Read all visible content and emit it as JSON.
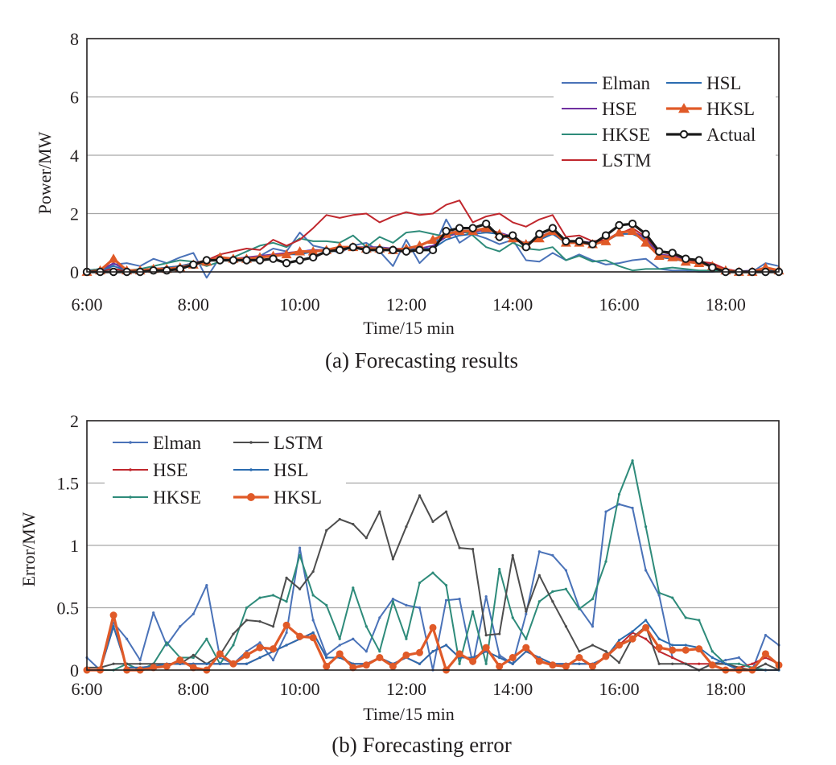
{
  "chart_data": [
    {
      "type": "line",
      "caption": "(a) Forecasting results",
      "xlabel": "Time/15 min",
      "ylabel": "Power/MW",
      "xlim": [
        "6:00",
        "19:00"
      ],
      "ylim": [
        0,
        8
      ],
      "yticks": [
        "0",
        "2",
        "4",
        "6",
        "8"
      ],
      "xticks": [
        "6:00",
        "8:00",
        "10:00",
        "12:00",
        "14:00",
        "16:00",
        "18:00"
      ],
      "grid": "horizontal",
      "legend_position": "upper-right",
      "x": [
        "6:00",
        "6:15",
        "6:30",
        "6:45",
        "7:00",
        "7:15",
        "7:30",
        "7:45",
        "8:00",
        "8:15",
        "8:30",
        "8:45",
        "9:00",
        "9:15",
        "9:30",
        "9:45",
        "10:00",
        "10:15",
        "10:30",
        "10:45",
        "11:00",
        "11:15",
        "11:30",
        "11:45",
        "12:00",
        "12:15",
        "12:30",
        "12:45",
        "13:00",
        "13:15",
        "13:30",
        "13:45",
        "14:00",
        "14:15",
        "14:30",
        "14:45",
        "15:00",
        "15:15",
        "15:30",
        "15:45",
        "16:00",
        "16:15",
        "16:30",
        "16:45",
        "17:00",
        "17:15",
        "17:30",
        "17:45",
        "18:00",
        "18:15",
        "18:30",
        "18:45",
        "19:00"
      ],
      "series": [
        {
          "name": "Elman",
          "color": "#4a72b8",
          "marker": "none",
          "values": [
            0.05,
            0.1,
            0.25,
            0.3,
            0.2,
            0.45,
            0.3,
            0.5,
            0.65,
            -0.2,
            0.5,
            0.45,
            0.4,
            0.55,
            0.8,
            0.7,
            1.35,
            0.9,
            0.8,
            0.65,
            0.9,
            1.0,
            0.7,
            0.2,
            1.1,
            0.3,
            0.75,
            1.8,
            1.0,
            1.3,
            1.15,
            0.95,
            1.1,
            0.4,
            0.35,
            0.65,
            0.4,
            0.6,
            0.4,
            0.25,
            0.3,
            0.4,
            0.45,
            0.1,
            0.05,
            0.05,
            0.0,
            0.0,
            0.05,
            0.05,
            0.0,
            0.3,
            0.2
          ]
        },
        {
          "name": "HSE",
          "color": "#7030a0",
          "marker": "none",
          "values": [
            0.02,
            0.05,
            0.3,
            0.05,
            0.05,
            0.1,
            0.1,
            0.15,
            0.25,
            0.35,
            0.45,
            0.45,
            0.5,
            0.55,
            0.6,
            0.65,
            0.7,
            0.75,
            0.75,
            0.8,
            0.85,
            0.85,
            0.85,
            0.8,
            0.8,
            0.8,
            0.9,
            1.2,
            1.35,
            1.35,
            1.45,
            1.35,
            1.2,
            0.95,
            1.2,
            1.4,
            1.05,
            1.05,
            1.0,
            1.1,
            1.35,
            1.4,
            1.15,
            0.6,
            0.55,
            0.4,
            0.35,
            0.25,
            0.1,
            0.02,
            0.05,
            0.1,
            0.05
          ]
        },
        {
          "name": "HKSE",
          "color": "#2e8b7a",
          "marker": "none",
          "values": [
            0.05,
            0.1,
            0.1,
            0.05,
            0.1,
            0.2,
            0.3,
            0.4,
            0.35,
            0.2,
            0.35,
            0.5,
            0.7,
            0.9,
            1.0,
            0.85,
            1.15,
            1.05,
            1.05,
            1.0,
            1.25,
            0.85,
            1.2,
            1.0,
            1.35,
            1.4,
            1.3,
            1.2,
            1.45,
            1.25,
            0.85,
            0.7,
            1.0,
            0.8,
            0.75,
            0.85,
            0.4,
            0.55,
            0.35,
            0.4,
            0.2,
            0.05,
            0.1,
            0.1,
            0.15,
            0.1,
            0.05,
            0.05,
            0.0,
            0.0,
            0.0,
            0.0,
            0.0
          ]
        },
        {
          "name": "LSTM",
          "color": "#c0272d",
          "marker": "none",
          "values": [
            0.02,
            0.05,
            0.1,
            0.05,
            0.05,
            0.1,
            0.15,
            0.2,
            0.3,
            0.4,
            0.6,
            0.7,
            0.8,
            0.75,
            1.1,
            0.9,
            1.1,
            1.5,
            1.95,
            1.85,
            1.95,
            2.0,
            1.7,
            1.9,
            2.05,
            1.95,
            2.0,
            2.3,
            2.45,
            1.7,
            1.9,
            2.0,
            1.7,
            1.55,
            1.8,
            1.95,
            1.2,
            1.25,
            1.05,
            1.1,
            1.3,
            1.5,
            1.2,
            0.7,
            0.6,
            0.45,
            0.35,
            0.3,
            0.1,
            0.02,
            0.0,
            0.05,
            0.0
          ]
        },
        {
          "name": "HSL",
          "color": "#2b6cb0",
          "marker": "none",
          "values": [
            0.05,
            0.05,
            0.2,
            0.05,
            0.05,
            0.1,
            0.15,
            0.2,
            0.3,
            0.35,
            0.45,
            0.4,
            0.45,
            0.5,
            0.55,
            0.6,
            0.6,
            0.7,
            0.75,
            0.8,
            0.8,
            0.8,
            0.85,
            0.75,
            0.75,
            0.8,
            0.8,
            1.1,
            1.25,
            1.3,
            1.35,
            1.3,
            1.1,
            1.0,
            1.1,
            1.3,
            1.0,
            1.0,
            0.95,
            1.05,
            1.3,
            1.3,
            1.1,
            0.5,
            0.45,
            0.35,
            0.3,
            0.2,
            0.05,
            0.02,
            0.02,
            0.05,
            0.05
          ]
        },
        {
          "name": "HKSL",
          "color": "#e05a28",
          "marker": "triangle",
          "values": [
            0.0,
            0.05,
            0.45,
            0.05,
            0.05,
            0.1,
            0.1,
            0.15,
            0.25,
            0.35,
            0.5,
            0.45,
            0.45,
            0.5,
            0.55,
            0.6,
            0.7,
            0.7,
            0.75,
            0.85,
            0.85,
            0.8,
            0.8,
            0.75,
            0.8,
            0.9,
            1.1,
            1.3,
            1.4,
            1.4,
            1.5,
            1.3,
            1.15,
            0.95,
            1.15,
            1.4,
            1.0,
            1.0,
            0.95,
            1.05,
            1.35,
            1.4,
            1.0,
            0.55,
            0.5,
            0.35,
            0.3,
            0.2,
            0.05,
            0.0,
            0.0,
            0.15,
            0.05
          ]
        },
        {
          "name": "Actual",
          "color": "#1a1a1a",
          "marker": "circle",
          "values": [
            0.0,
            0.0,
            0.0,
            0.0,
            0.0,
            0.05,
            0.05,
            0.1,
            0.25,
            0.4,
            0.4,
            0.4,
            0.4,
            0.4,
            0.45,
            0.3,
            0.4,
            0.5,
            0.7,
            0.75,
            0.85,
            0.75,
            0.75,
            0.75,
            0.7,
            0.75,
            0.75,
            1.4,
            1.5,
            1.5,
            1.65,
            1.2,
            1.25,
            0.85,
            1.3,
            1.5,
            1.05,
            1.05,
            0.95,
            1.25,
            1.6,
            1.65,
            1.3,
            0.7,
            0.65,
            0.45,
            0.4,
            0.15,
            0.0,
            0.0,
            0.0,
            0.0,
            0.0
          ]
        }
      ]
    },
    {
      "type": "line",
      "caption": "(b) Forecasting error",
      "xlabel": "Time/15 min",
      "ylabel": "Error/MW",
      "xlim": [
        "6:00",
        "19:00"
      ],
      "ylim": [
        0,
        2
      ],
      "yticks": [
        "0",
        "0.5",
        "1",
        "1.5",
        "2"
      ],
      "xticks": [
        "6:00",
        "8:00",
        "10:00",
        "12:00",
        "14:00",
        "16:00",
        "18:00"
      ],
      "grid": "horizontal",
      "legend_position": "upper-left",
      "x": [
        "6:00",
        "6:15",
        "6:30",
        "6:45",
        "7:00",
        "7:15",
        "7:30",
        "7:45",
        "8:00",
        "8:15",
        "8:30",
        "8:45",
        "9:00",
        "9:15",
        "9:30",
        "9:45",
        "10:00",
        "10:15",
        "10:30",
        "10:45",
        "11:00",
        "11:15",
        "11:30",
        "11:45",
        "12:00",
        "12:15",
        "12:30",
        "12:45",
        "13:00",
        "13:15",
        "13:30",
        "13:45",
        "14:00",
        "14:15",
        "14:30",
        "14:45",
        "15:00",
        "15:15",
        "15:30",
        "15:45",
        "16:00",
        "16:15",
        "16:30",
        "16:45",
        "17:00",
        "17:15",
        "17:30",
        "17:45",
        "18:00",
        "18:15",
        "18:30",
        "18:45",
        "19:00"
      ],
      "series": [
        {
          "name": "Elman",
          "color": "#4a72b8",
          "marker": "dot",
          "values": [
            0.1,
            0.0,
            0.38,
            0.25,
            0.08,
            0.46,
            0.2,
            0.35,
            0.45,
            0.68,
            0.1,
            0.05,
            0.15,
            0.22,
            0.08,
            0.3,
            0.98,
            0.4,
            0.12,
            0.2,
            0.25,
            0.15,
            0.42,
            0.57,
            0.52,
            0.5,
            0.0,
            0.56,
            0.57,
            0.05,
            0.59,
            0.12,
            0.05,
            0.45,
            0.95,
            0.92,
            0.8,
            0.5,
            0.35,
            1.27,
            1.33,
            1.3,
            0.8,
            0.6,
            0.1,
            0.05,
            0.0,
            0.05,
            0.08,
            0.1,
            0.0,
            0.28,
            0.2
          ]
        },
        {
          "name": "HSE",
          "color": "#c0272d",
          "marker": "dot",
          "values": [
            0.0,
            0.0,
            0.35,
            0.02,
            0.02,
            0.03,
            0.05,
            0.05,
            0.05,
            0.05,
            0.05,
            0.05,
            0.05,
            0.1,
            0.15,
            0.2,
            0.25,
            0.3,
            0.1,
            0.1,
            0.05,
            0.05,
            0.1,
            0.05,
            0.1,
            0.05,
            0.15,
            0.2,
            0.1,
            0.1,
            0.15,
            0.1,
            0.05,
            0.15,
            0.1,
            0.05,
            0.05,
            0.05,
            0.05,
            0.1,
            0.2,
            0.3,
            0.25,
            0.15,
            0.1,
            0.05,
            0.05,
            0.05,
            0.05,
            0.02,
            0.05,
            0.1,
            0.05
          ]
        },
        {
          "name": "HKSE",
          "color": "#2e8b7a",
          "marker": "dot",
          "values": [
            0.0,
            0.0,
            0.0,
            0.05,
            0.0,
            0.05,
            0.22,
            0.1,
            0.1,
            0.25,
            0.05,
            0.2,
            0.5,
            0.58,
            0.6,
            0.55,
            0.92,
            0.6,
            0.52,
            0.25,
            0.66,
            0.35,
            0.15,
            0.55,
            0.25,
            0.7,
            0.78,
            0.68,
            0.05,
            0.47,
            0.05,
            0.81,
            0.42,
            0.25,
            0.55,
            0.63,
            0.65,
            0.49,
            0.57,
            0.87,
            1.41,
            1.68,
            1.15,
            0.62,
            0.58,
            0.42,
            0.4,
            0.15,
            0.05,
            0.05,
            0.02,
            0.0,
            0.0
          ]
        },
        {
          "name": "LSTM",
          "color": "#4d4d4d",
          "marker": "dot",
          "values": [
            0.02,
            0.02,
            0.05,
            0.05,
            0.05,
            0.05,
            0.05,
            0.05,
            0.12,
            0.05,
            0.12,
            0.29,
            0.4,
            0.39,
            0.35,
            0.74,
            0.65,
            0.79,
            1.12,
            1.21,
            1.17,
            1.06,
            1.27,
            0.89,
            1.15,
            1.4,
            1.19,
            1.27,
            0.98,
            0.97,
            0.28,
            0.29,
            0.92,
            0.47,
            0.76,
            0.55,
            0.35,
            0.15,
            0.2,
            0.15,
            0.06,
            0.26,
            0.35,
            0.05,
            0.05,
            0.05,
            0.0,
            0.05,
            0.05,
            0.02,
            0.0,
            0.05,
            0.0
          ]
        },
        {
          "name": "HSL",
          "color": "#2b6cb0",
          "marker": "dot",
          "values": [
            0.0,
            0.0,
            0.35,
            0.02,
            0.02,
            0.03,
            0.05,
            0.05,
            0.05,
            0.05,
            0.05,
            0.05,
            0.05,
            0.1,
            0.15,
            0.2,
            0.25,
            0.3,
            0.1,
            0.1,
            0.05,
            0.05,
            0.1,
            0.05,
            0.1,
            0.05,
            0.15,
            0.2,
            0.1,
            0.1,
            0.15,
            0.1,
            0.05,
            0.15,
            0.1,
            0.05,
            0.05,
            0.05,
            0.05,
            0.1,
            0.24,
            0.31,
            0.4,
            0.25,
            0.2,
            0.2,
            0.18,
            0.1,
            0.05,
            0.0,
            0.0,
            0.0,
            0.0
          ]
        },
        {
          "name": "HKSL",
          "color": "#e05a28",
          "marker": "circle",
          "values": [
            0.0,
            0.0,
            0.44,
            0.0,
            0.0,
            0.02,
            0.03,
            0.08,
            0.02,
            0.0,
            0.13,
            0.05,
            0.12,
            0.18,
            0.17,
            0.36,
            0.27,
            0.26,
            0.03,
            0.13,
            0.02,
            0.04,
            0.1,
            0.03,
            0.12,
            0.14,
            0.34,
            0.0,
            0.13,
            0.07,
            0.18,
            0.03,
            0.1,
            0.18,
            0.07,
            0.04,
            0.03,
            0.1,
            0.03,
            0.11,
            0.2,
            0.25,
            0.34,
            0.18,
            0.16,
            0.16,
            0.17,
            0.04,
            0.0,
            0.0,
            0.0,
            0.13,
            0.04
          ]
        }
      ]
    }
  ],
  "legend_a": [
    {
      "name": "Elman"
    },
    {
      "name": "HSL"
    },
    {
      "name": "HSE"
    },
    {
      "name": "HKSL"
    },
    {
      "name": "HKSE"
    },
    {
      "name": "Actual"
    },
    {
      "name": "LSTM"
    }
  ],
  "legend_b": [
    {
      "name": "Elman"
    },
    {
      "name": "LSTM"
    },
    {
      "name": "HSE"
    },
    {
      "name": "HSL"
    },
    {
      "name": "HKSE"
    },
    {
      "name": "HKSL"
    }
  ]
}
